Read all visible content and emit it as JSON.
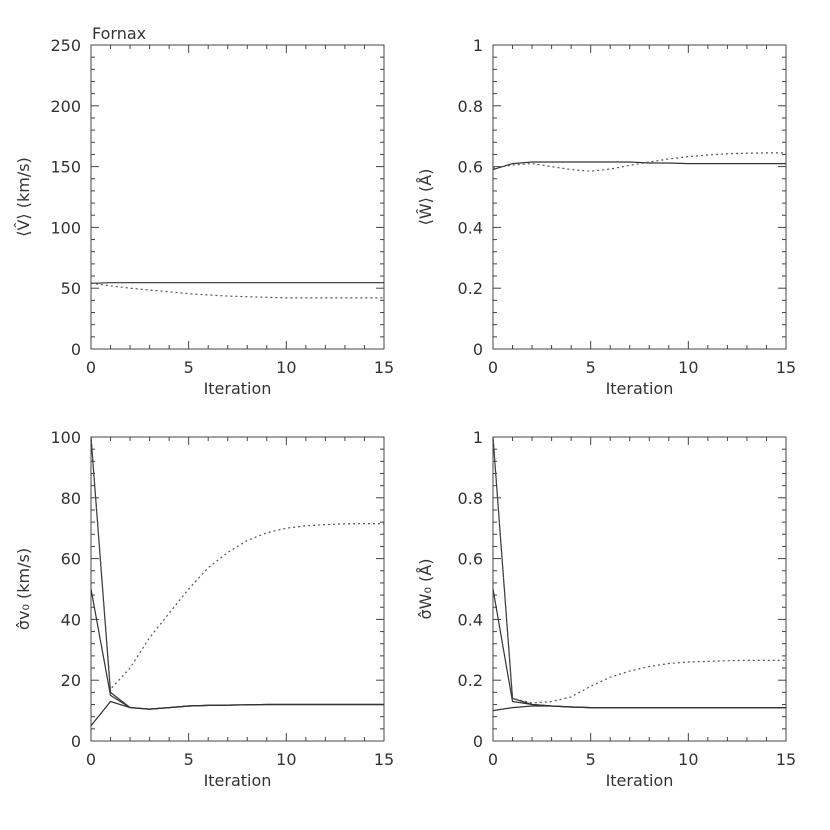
{
  "chart_data": [
    {
      "type": "line",
      "title": "Fornax",
      "xlabel": "Iteration",
      "ylabel": "⟨V̂⟩ (km/s)",
      "xlim": [
        0,
        15
      ],
      "ylim": [
        0,
        250
      ],
      "x_ticks": [
        0,
        5,
        10,
        15
      ],
      "y_ticks": [
        0,
        50,
        100,
        150,
        200,
        250
      ],
      "grid": false,
      "series": [
        {
          "style": "solid",
          "color": "#333333",
          "x": [
            0,
            1,
            2,
            3,
            4,
            5,
            6,
            7,
            8,
            9,
            10,
            11,
            12,
            13,
            14,
            15
          ],
          "y": [
            54,
            54.5,
            54.5,
            54.5,
            54.5,
            54.5,
            54.5,
            54.5,
            54.5,
            54.5,
            54.5,
            54.5,
            54.5,
            54.5,
            54.5,
            54.5
          ]
        },
        {
          "style": "dotted",
          "color": "#555555",
          "x": [
            0,
            1,
            2,
            3,
            4,
            5,
            6,
            7,
            8,
            9,
            10,
            11,
            12,
            13,
            14,
            15
          ],
          "y": [
            54,
            52,
            50,
            48.5,
            47,
            45.5,
            44.5,
            43.5,
            43,
            42.5,
            42,
            42,
            42,
            42,
            42,
            42
          ]
        }
      ]
    },
    {
      "type": "line",
      "title": "",
      "xlabel": "Iteration",
      "ylabel": "⟨Ŵ⟩ (Å)",
      "xlim": [
        0,
        15
      ],
      "ylim": [
        0,
        1
      ],
      "x_ticks": [
        0,
        5,
        10,
        15
      ],
      "y_ticks": [
        0,
        0.2,
        0.4,
        0.6,
        0.8,
        1
      ],
      "grid": false,
      "series": [
        {
          "style": "solid",
          "color": "#333333",
          "x": [
            0,
            1,
            2,
            3,
            4,
            5,
            6,
            7,
            8,
            9,
            10,
            11,
            12,
            13,
            14,
            15
          ],
          "y": [
            0.59,
            0.61,
            0.615,
            0.615,
            0.615,
            0.615,
            0.615,
            0.615,
            0.612,
            0.612,
            0.61,
            0.61,
            0.61,
            0.61,
            0.61,
            0.61
          ]
        },
        {
          "style": "dotted",
          "color": "#555555",
          "x": [
            0,
            1,
            2,
            3,
            4,
            5,
            6,
            7,
            8,
            9,
            10,
            11,
            12,
            13,
            14,
            15
          ],
          "y": [
            0.595,
            0.605,
            0.61,
            0.6,
            0.59,
            0.585,
            0.592,
            0.604,
            0.615,
            0.625,
            0.633,
            0.638,
            0.642,
            0.644,
            0.645,
            0.645
          ]
        }
      ]
    },
    {
      "type": "line",
      "title": "",
      "xlabel": "Iteration",
      "ylabel": "σ̂v₀ (km/s)",
      "xlim": [
        0,
        15
      ],
      "ylim": [
        0,
        100
      ],
      "x_ticks": [
        0,
        5,
        10,
        15
      ],
      "y_ticks": [
        0,
        20,
        40,
        60,
        80,
        100
      ],
      "grid": false,
      "series": [
        {
          "style": "solid",
          "color": "#333333",
          "x": [
            0,
            1,
            2,
            3,
            4,
            5,
            6,
            7,
            8,
            9,
            10,
            11,
            12,
            13,
            14,
            15
          ],
          "y": [
            100,
            16,
            11,
            10.5,
            11,
            11.5,
            11.7,
            11.8,
            11.9,
            12,
            12,
            12,
            12,
            12,
            12,
            12
          ]
        },
        {
          "style": "solid",
          "color": "#333333",
          "x": [
            0,
            1,
            2,
            3,
            4,
            5,
            6,
            7,
            8,
            9,
            10,
            11,
            12,
            13,
            14,
            15
          ],
          "y": [
            50,
            15,
            11,
            10.5,
            11,
            11.5,
            11.7,
            11.8,
            11.9,
            12,
            12,
            12,
            12,
            12,
            12,
            12
          ]
        },
        {
          "style": "solid",
          "color": "#333333",
          "x": [
            0,
            1,
            2,
            3,
            4,
            5,
            6,
            7,
            8,
            9,
            10,
            11,
            12,
            13,
            14,
            15
          ],
          "y": [
            5,
            13,
            11,
            10.5,
            11,
            11.5,
            11.7,
            11.8,
            11.9,
            12,
            12,
            12,
            12,
            12,
            12,
            12
          ]
        },
        {
          "style": "dotted",
          "color": "#555555",
          "x": [
            0,
            1,
            2,
            3,
            4,
            5,
            6,
            7,
            8,
            9,
            10,
            11,
            12,
            13,
            14,
            15
          ],
          "y": [
            100,
            17,
            24,
            34,
            42,
            50,
            57,
            62,
            66,
            68.5,
            70,
            70.8,
            71.2,
            71.4,
            71.5,
            71.5
          ]
        }
      ]
    },
    {
      "type": "line",
      "title": "",
      "xlabel": "Iteration",
      "ylabel": "σ̂W₀ (Å)",
      "xlim": [
        0,
        15
      ],
      "ylim": [
        0,
        1
      ],
      "x_ticks": [
        0,
        5,
        10,
        15
      ],
      "y_ticks": [
        0,
        0.2,
        0.4,
        0.6,
        0.8,
        1
      ],
      "grid": false,
      "series": [
        {
          "style": "solid",
          "color": "#333333",
          "x": [
            0,
            1,
            2,
            3,
            4,
            5,
            6,
            7,
            8,
            9,
            10,
            11,
            12,
            13,
            14,
            15
          ],
          "y": [
            1.0,
            0.14,
            0.12,
            0.115,
            0.112,
            0.11,
            0.11,
            0.11,
            0.11,
            0.11,
            0.11,
            0.11,
            0.11,
            0.11,
            0.11,
            0.11
          ]
        },
        {
          "style": "solid",
          "color": "#333333",
          "x": [
            0,
            1,
            2,
            3,
            4,
            5,
            6,
            7,
            8,
            9,
            10,
            11,
            12,
            13,
            14,
            15
          ],
          "y": [
            0.5,
            0.13,
            0.12,
            0.115,
            0.112,
            0.11,
            0.11,
            0.11,
            0.11,
            0.11,
            0.11,
            0.11,
            0.11,
            0.11,
            0.11,
            0.11
          ]
        },
        {
          "style": "solid",
          "color": "#333333",
          "x": [
            0,
            1,
            2,
            3,
            4,
            5,
            6,
            7,
            8,
            9,
            10,
            11,
            12,
            13,
            14,
            15
          ],
          "y": [
            0.1,
            0.11,
            0.115,
            0.115,
            0.112,
            0.11,
            0.11,
            0.11,
            0.11,
            0.11,
            0.11,
            0.11,
            0.11,
            0.11,
            0.11,
            0.11
          ]
        },
        {
          "style": "dotted",
          "color": "#555555",
          "x": [
            0,
            1,
            2,
            3,
            4,
            5,
            6,
            7,
            8,
            9,
            10,
            11,
            12,
            13,
            14,
            15
          ],
          "y": [
            1.0,
            0.14,
            0.125,
            0.13,
            0.145,
            0.18,
            0.21,
            0.23,
            0.245,
            0.255,
            0.26,
            0.262,
            0.264,
            0.265,
            0.265,
            0.265
          ]
        }
      ]
    }
  ]
}
